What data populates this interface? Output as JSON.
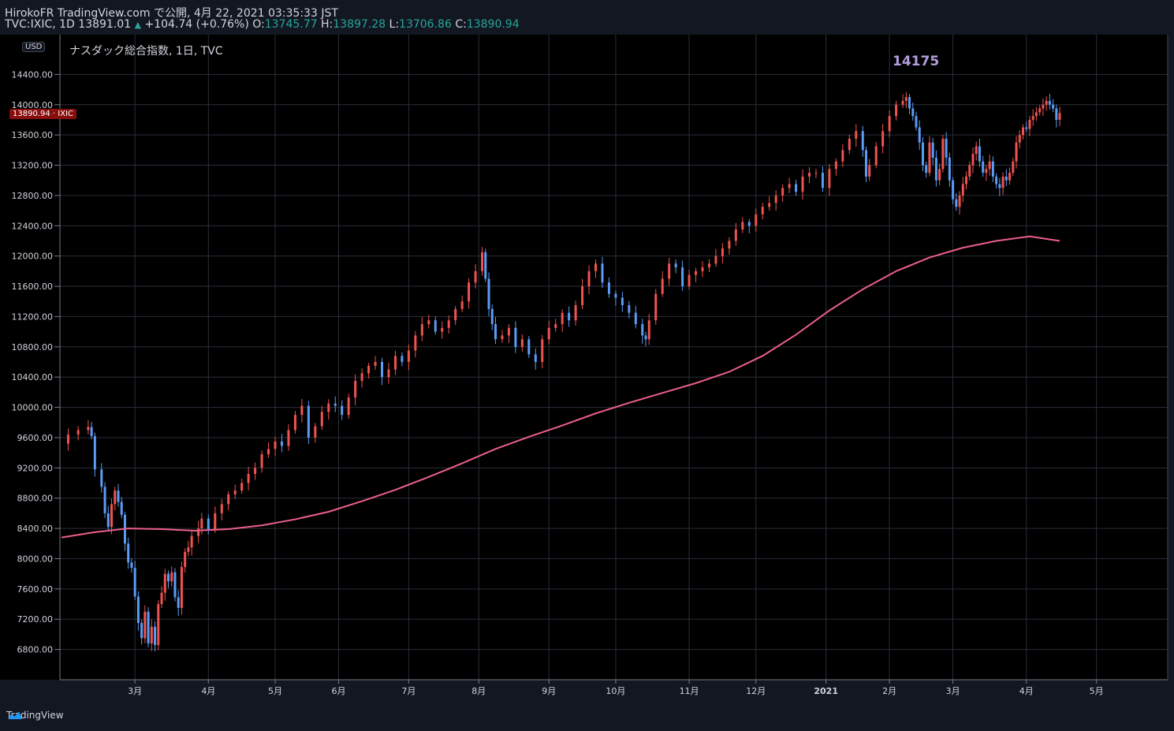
{
  "header": {
    "line1": "HirokoFR TradingView.com で公開, 4月 22, 2021 03:35:33 JST",
    "symbol": "TVC:IXIC, 1D",
    "price": "13891.01",
    "arrow": "▲",
    "change": "+104.74 (+0.76%)",
    "o_label": "O:",
    "o_val": "13745.77",
    "h_label": "H:",
    "h_val": "13897.28",
    "l_label": "L:",
    "l_val": "13706.86",
    "c_label": "C:",
    "c_val": "13890.94"
  },
  "currency": "USD",
  "legend": "ナスダック総合指数, 1日, TVC",
  "annotation": "14175",
  "price_tag": "13890.94 · IXIC",
  "footer": {
    "brand": "TradingView"
  },
  "colors": {
    "up": "#ef5350",
    "down": "#5b9cf6",
    "ma": "#ec5f8a",
    "bg": "#131722",
    "grid": "#2a2e39",
    "accent": "#26a69a",
    "annotation": "#b39ddb"
  },
  "chart_data": {
    "type": "candlestick",
    "title": "ナスダック総合指数, 1日, TVC",
    "ylim": [
      6400,
      14800
    ],
    "y_ticks": [
      6800,
      7200,
      7600,
      8000,
      8400,
      8800,
      9200,
      9600,
      10000,
      10400,
      10800,
      11200,
      11600,
      12000,
      12400,
      12800,
      13200,
      13600,
      14000,
      14400
    ],
    "y_tick_labels": [
      "6800.00",
      "7200.00",
      "7600.00",
      "8000.00",
      "8400.00",
      "8800.00",
      "9200.00",
      "9600.00",
      "10000.00",
      "10400.00",
      "10800.00",
      "11200.00",
      "11600.00",
      "12000.00",
      "12400.00",
      "12800.00",
      "13200.00",
      "13600.00",
      "14000.00",
      "14400.00"
    ],
    "x_months": [
      {
        "label": "3月",
        "day": 22
      },
      {
        "label": "4月",
        "day": 44
      },
      {
        "label": "5月",
        "day": 64
      },
      {
        "label": "6月",
        "day": 83
      },
      {
        "label": "7月",
        "day": 104
      },
      {
        "label": "8月",
        "day": 125
      },
      {
        "label": "9月",
        "day": 146
      },
      {
        "label": "10月",
        "day": 166
      },
      {
        "label": "11月",
        "day": 188
      },
      {
        "label": "12月",
        "day": 208
      },
      {
        "label": "2021",
        "day": 229
      },
      {
        "label": "2月",
        "day": 248
      },
      {
        "label": "3月",
        "day": 267
      },
      {
        "label": "4月",
        "day": 289
      },
      {
        "label": "5月",
        "day": 310
      }
    ],
    "x_max_day": 320,
    "close_series": [
      {
        "day": 0,
        "v": 9520
      },
      {
        "day": 2,
        "v": 9640
      },
      {
        "day": 5,
        "v": 9700
      },
      {
        "day": 8,
        "v": 9740
      },
      {
        "day": 9,
        "v": 9620
      },
      {
        "day": 10,
        "v": 9180
      },
      {
        "day": 12,
        "v": 8950
      },
      {
        "day": 13,
        "v": 8600
      },
      {
        "day": 14,
        "v": 8420
      },
      {
        "day": 15,
        "v": 8720
      },
      {
        "day": 16,
        "v": 8900
      },
      {
        "day": 17,
        "v": 8750
      },
      {
        "day": 18,
        "v": 8580
      },
      {
        "day": 19,
        "v": 8200
      },
      {
        "day": 20,
        "v": 7950
      },
      {
        "day": 21,
        "v": 7880
      },
      {
        "day": 22,
        "v": 7500
      },
      {
        "day": 23,
        "v": 7150
      },
      {
        "day": 24,
        "v": 6950
      },
      {
        "day": 25,
        "v": 7300
      },
      {
        "day": 26,
        "v": 6880
      },
      {
        "day": 27,
        "v": 7100
      },
      {
        "day": 28,
        "v": 6860
      },
      {
        "day": 29,
        "v": 7400
      },
      {
        "day": 30,
        "v": 7550
      },
      {
        "day": 31,
        "v": 7800
      },
      {
        "day": 32,
        "v": 7700
      },
      {
        "day": 33,
        "v": 7820
      },
      {
        "day": 34,
        "v": 7490
      },
      {
        "day": 35,
        "v": 7350
      },
      {
        "day": 36,
        "v": 7890
      },
      {
        "day": 37,
        "v": 8090
      },
      {
        "day": 38,
        "v": 8150
      },
      {
        "day": 39,
        "v": 8300
      },
      {
        "day": 41,
        "v": 8400
      },
      {
        "day": 42,
        "v": 8530
      },
      {
        "day": 44,
        "v": 8380
      },
      {
        "day": 46,
        "v": 8600
      },
      {
        "day": 48,
        "v": 8720
      },
      {
        "day": 50,
        "v": 8850
      },
      {
        "day": 52,
        "v": 8900
      },
      {
        "day": 54,
        "v": 9000
      },
      {
        "day": 56,
        "v": 9120
      },
      {
        "day": 58,
        "v": 9200
      },
      {
        "day": 60,
        "v": 9380
      },
      {
        "day": 62,
        "v": 9450
      },
      {
        "day": 64,
        "v": 9550
      },
      {
        "day": 66,
        "v": 9490
      },
      {
        "day": 68,
        "v": 9700
      },
      {
        "day": 70,
        "v": 9900
      },
      {
        "day": 72,
        "v": 10020
      },
      {
        "day": 74,
        "v": 9600
      },
      {
        "day": 76,
        "v": 9750
      },
      {
        "day": 78,
        "v": 9940
      },
      {
        "day": 80,
        "v": 10050
      },
      {
        "day": 82,
        "v": 10020
      },
      {
        "day": 84,
        "v": 9900
      },
      {
        "day": 86,
        "v": 10130
      },
      {
        "day": 88,
        "v": 10350
      },
      {
        "day": 90,
        "v": 10450
      },
      {
        "day": 92,
        "v": 10550
      },
      {
        "day": 94,
        "v": 10600
      },
      {
        "day": 96,
        "v": 10400
      },
      {
        "day": 98,
        "v": 10500
      },
      {
        "day": 100,
        "v": 10680
      },
      {
        "day": 102,
        "v": 10600
      },
      {
        "day": 104,
        "v": 10750
      },
      {
        "day": 106,
        "v": 10950
      },
      {
        "day": 108,
        "v": 11100
      },
      {
        "day": 110,
        "v": 11150
      },
      {
        "day": 112,
        "v": 11000
      },
      {
        "day": 114,
        "v": 11050
      },
      {
        "day": 116,
        "v": 11150
      },
      {
        "day": 118,
        "v": 11300
      },
      {
        "day": 120,
        "v": 11400
      },
      {
        "day": 122,
        "v": 11650
      },
      {
        "day": 124,
        "v": 11800
      },
      {
        "day": 126,
        "v": 12050
      },
      {
        "day": 127,
        "v": 11700
      },
      {
        "day": 128,
        "v": 11300
      },
      {
        "day": 129,
        "v": 11100
      },
      {
        "day": 130,
        "v": 10900
      },
      {
        "day": 132,
        "v": 10950
      },
      {
        "day": 134,
        "v": 11050
      },
      {
        "day": 136,
        "v": 10800
      },
      {
        "day": 138,
        "v": 10900
      },
      {
        "day": 140,
        "v": 10700
      },
      {
        "day": 142,
        "v": 10600
      },
      {
        "day": 144,
        "v": 10900
      },
      {
        "day": 146,
        "v": 11050
      },
      {
        "day": 148,
        "v": 11100
      },
      {
        "day": 150,
        "v": 11250
      },
      {
        "day": 152,
        "v": 11150
      },
      {
        "day": 154,
        "v": 11350
      },
      {
        "day": 156,
        "v": 11600
      },
      {
        "day": 158,
        "v": 11800
      },
      {
        "day": 160,
        "v": 11900
      },
      {
        "day": 162,
        "v": 11650
      },
      {
        "day": 164,
        "v": 11500
      },
      {
        "day": 166,
        "v": 11450
      },
      {
        "day": 168,
        "v": 11350
      },
      {
        "day": 170,
        "v": 11250
      },
      {
        "day": 172,
        "v": 11100
      },
      {
        "day": 174,
        "v": 10950
      },
      {
        "day": 175,
        "v": 10900
      },
      {
        "day": 176,
        "v": 11150
      },
      {
        "day": 178,
        "v": 11500
      },
      {
        "day": 180,
        "v": 11700
      },
      {
        "day": 182,
        "v": 11900
      },
      {
        "day": 184,
        "v": 11850
      },
      {
        "day": 186,
        "v": 11600
      },
      {
        "day": 188,
        "v": 11750
      },
      {
        "day": 190,
        "v": 11800
      },
      {
        "day": 192,
        "v": 11850
      },
      {
        "day": 194,
        "v": 11900
      },
      {
        "day": 196,
        "v": 12000
      },
      {
        "day": 198,
        "v": 12100
      },
      {
        "day": 200,
        "v": 12200
      },
      {
        "day": 202,
        "v": 12350
      },
      {
        "day": 204,
        "v": 12450
      },
      {
        "day": 206,
        "v": 12400
      },
      {
        "day": 208,
        "v": 12550
      },
      {
        "day": 210,
        "v": 12650
      },
      {
        "day": 212,
        "v": 12700
      },
      {
        "day": 214,
        "v": 12800
      },
      {
        "day": 216,
        "v": 12900
      },
      {
        "day": 218,
        "v": 12950
      },
      {
        "day": 220,
        "v": 12850
      },
      {
        "day": 222,
        "v": 13050
      },
      {
        "day": 224,
        "v": 13100
      },
      {
        "day": 226,
        "v": 13100
      },
      {
        "day": 228,
        "v": 12900
      },
      {
        "day": 230,
        "v": 13150
      },
      {
        "day": 232,
        "v": 13250
      },
      {
        "day": 234,
        "v": 13400
      },
      {
        "day": 236,
        "v": 13550
      },
      {
        "day": 238,
        "v": 13650
      },
      {
        "day": 240,
        "v": 13400
      },
      {
        "day": 241,
        "v": 13050
      },
      {
        "day": 242,
        "v": 13200
      },
      {
        "day": 244,
        "v": 13450
      },
      {
        "day": 246,
        "v": 13650
      },
      {
        "day": 248,
        "v": 13850
      },
      {
        "day": 250,
        "v": 14000
      },
      {
        "day": 252,
        "v": 14050
      },
      {
        "day": 253,
        "v": 14100
      },
      {
        "day": 254,
        "v": 13950
      },
      {
        "day": 255,
        "v": 13850
      },
      {
        "day": 256,
        "v": 13700
      },
      {
        "day": 257,
        "v": 13500
      },
      {
        "day": 258,
        "v": 13200
      },
      {
        "day": 259,
        "v": 13100
      },
      {
        "day": 260,
        "v": 13500
      },
      {
        "day": 261,
        "v": 13300
      },
      {
        "day": 262,
        "v": 13000
      },
      {
        "day": 263,
        "v": 13150
      },
      {
        "day": 264,
        "v": 13550
      },
      {
        "day": 265,
        "v": 13300
      },
      {
        "day": 266,
        "v": 13000
      },
      {
        "day": 267,
        "v": 12750
      },
      {
        "day": 268,
        "v": 12650
      },
      {
        "day": 269,
        "v": 12800
      },
      {
        "day": 270,
        "v": 12950
      },
      {
        "day": 271,
        "v": 13050
      },
      {
        "day": 272,
        "v": 13200
      },
      {
        "day": 273,
        "v": 13350
      },
      {
        "day": 274,
        "v": 13450
      },
      {
        "day": 275,
        "v": 13250
      },
      {
        "day": 276,
        "v": 13100
      },
      {
        "day": 277,
        "v": 13150
      },
      {
        "day": 278,
        "v": 13250
      },
      {
        "day": 279,
        "v": 13050
      },
      {
        "day": 280,
        "v": 12950
      },
      {
        "day": 281,
        "v": 12900
      },
      {
        "day": 282,
        "v": 13050
      },
      {
        "day": 283,
        "v": 13000
      },
      {
        "day": 284,
        "v": 13100
      },
      {
        "day": 285,
        "v": 13250
      },
      {
        "day": 286,
        "v": 13500
      },
      {
        "day": 287,
        "v": 13600
      },
      {
        "day": 288,
        "v": 13700
      },
      {
        "day": 289,
        "v": 13680
      },
      {
        "day": 290,
        "v": 13800
      },
      {
        "day": 291,
        "v": 13850
      },
      {
        "day": 292,
        "v": 13900
      },
      {
        "day": 293,
        "v": 13950
      },
      {
        "day": 294,
        "v": 14000
      },
      {
        "day": 295,
        "v": 14050
      },
      {
        "day": 296,
        "v": 14000
      },
      {
        "day": 297,
        "v": 13950
      },
      {
        "day": 298,
        "v": 13800
      },
      {
        "day": 299,
        "v": 13890
      }
    ],
    "ma_series": [
      {
        "day": 0,
        "v": 8280
      },
      {
        "day": 10,
        "v": 8350
      },
      {
        "day": 20,
        "v": 8400
      },
      {
        "day": 30,
        "v": 8390
      },
      {
        "day": 40,
        "v": 8370
      },
      {
        "day": 50,
        "v": 8390
      },
      {
        "day": 60,
        "v": 8440
      },
      {
        "day": 70,
        "v": 8520
      },
      {
        "day": 80,
        "v": 8620
      },
      {
        "day": 90,
        "v": 8760
      },
      {
        "day": 100,
        "v": 8910
      },
      {
        "day": 110,
        "v": 9080
      },
      {
        "day": 120,
        "v": 9260
      },
      {
        "day": 130,
        "v": 9450
      },
      {
        "day": 140,
        "v": 9610
      },
      {
        "day": 150,
        "v": 9760
      },
      {
        "day": 160,
        "v": 9920
      },
      {
        "day": 170,
        "v": 10060
      },
      {
        "day": 180,
        "v": 10190
      },
      {
        "day": 190,
        "v": 10320
      },
      {
        "day": 200,
        "v": 10470
      },
      {
        "day": 210,
        "v": 10680
      },
      {
        "day": 220,
        "v": 10960
      },
      {
        "day": 230,
        "v": 11280
      },
      {
        "day": 240,
        "v": 11560
      },
      {
        "day": 250,
        "v": 11800
      },
      {
        "day": 260,
        "v": 11980
      },
      {
        "day": 270,
        "v": 12110
      },
      {
        "day": 280,
        "v": 12200
      },
      {
        "day": 290,
        "v": 12260
      },
      {
        "day": 299,
        "v": 12200
      }
    ]
  }
}
